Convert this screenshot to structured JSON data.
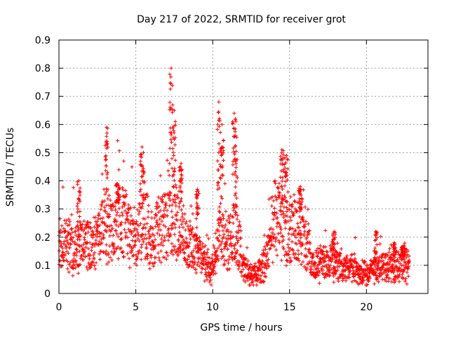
{
  "chart_data": {
    "type": "scatter",
    "title": "Day 217 of 2022, SRMTID for receiver grot",
    "xlabel": "GPS time / hours",
    "ylabel": "SRMTID / TECUs",
    "xlim": [
      0,
      24
    ],
    "ylim": [
      0,
      0.9
    ],
    "xticks": [
      "0",
      "5",
      "10",
      "15",
      "20"
    ],
    "yticks": [
      "0",
      "0.1",
      "0.2",
      "0.3",
      "0.4",
      "0.5",
      "0.6",
      "0.7",
      "0.8",
      "0.9"
    ],
    "grid": true,
    "marker": "+",
    "color": "#ff0000",
    "baseline": [
      [
        0.0,
        0.18
      ],
      [
        0.5,
        0.2
      ],
      [
        1.0,
        0.17
      ],
      [
        1.5,
        0.2
      ],
      [
        2.0,
        0.19
      ],
      [
        2.5,
        0.2
      ],
      [
        3.0,
        0.28
      ],
      [
        3.5,
        0.25
      ],
      [
        4.0,
        0.3
      ],
      [
        4.5,
        0.24
      ],
      [
        5.0,
        0.22
      ],
      [
        5.5,
        0.32
      ],
      [
        6.0,
        0.2
      ],
      [
        6.5,
        0.25
      ],
      [
        7.0,
        0.3
      ],
      [
        7.5,
        0.32
      ],
      [
        8.0,
        0.26
      ],
      [
        8.5,
        0.18
      ],
      [
        9.0,
        0.16
      ],
      [
        9.5,
        0.12
      ],
      [
        10.0,
        0.1
      ],
      [
        10.5,
        0.25
      ],
      [
        11.0,
        0.2
      ],
      [
        11.5,
        0.25
      ],
      [
        12.0,
        0.1
      ],
      [
        12.5,
        0.07
      ],
      [
        13.0,
        0.08
      ],
      [
        13.5,
        0.14
      ],
      [
        14.0,
        0.3
      ],
      [
        14.5,
        0.28
      ],
      [
        15.0,
        0.24
      ],
      [
        15.5,
        0.25
      ],
      [
        16.0,
        0.2
      ],
      [
        16.5,
        0.1
      ],
      [
        17.0,
        0.12
      ],
      [
        17.5,
        0.11
      ],
      [
        18.0,
        0.12
      ],
      [
        18.5,
        0.1
      ],
      [
        19.0,
        0.1
      ],
      [
        19.5,
        0.09
      ],
      [
        20.0,
        0.07
      ],
      [
        20.5,
        0.09
      ],
      [
        21.0,
        0.1
      ],
      [
        21.5,
        0.1
      ],
      [
        22.0,
        0.11
      ],
      [
        22.5,
        0.12
      ],
      [
        22.8,
        0.1
      ]
    ],
    "spikes": [
      [
        1.3,
        0.4
      ],
      [
        3.1,
        0.59
      ],
      [
        3.8,
        0.39
      ],
      [
        5.4,
        0.52
      ],
      [
        7.3,
        0.8
      ],
      [
        7.5,
        0.65
      ],
      [
        7.9,
        0.45
      ],
      [
        9.0,
        0.37
      ],
      [
        10.4,
        0.68
      ],
      [
        10.6,
        0.6
      ],
      [
        11.4,
        0.64
      ],
      [
        11.5,
        0.56
      ],
      [
        14.5,
        0.51
      ],
      [
        14.8,
        0.49
      ],
      [
        15.7,
        0.38
      ],
      [
        17.9,
        0.22
      ],
      [
        20.6,
        0.22
      ],
      [
        21.8,
        0.18
      ],
      [
        22.4,
        0.17
      ]
    ],
    "x_start": 0.0,
    "x_end": 22.8,
    "sample_step_hours": 0.011
  }
}
